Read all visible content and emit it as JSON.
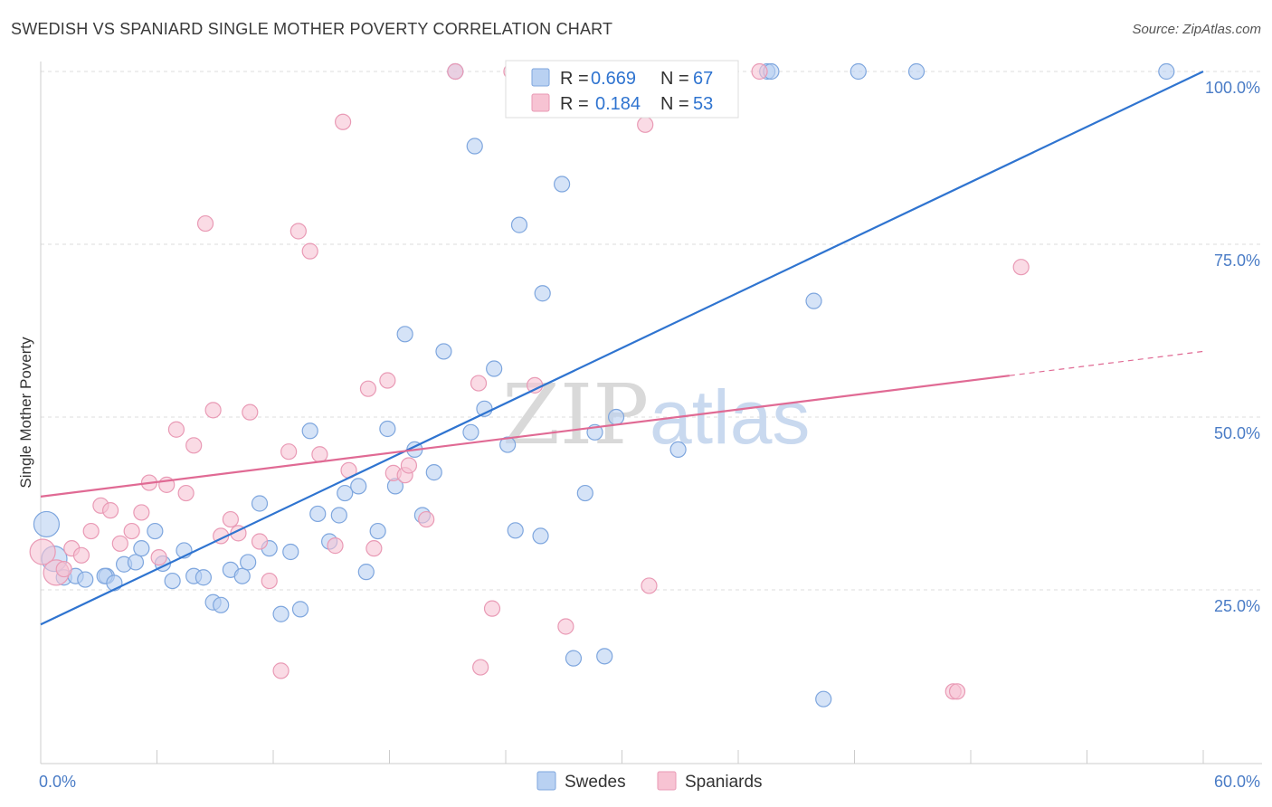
{
  "header": {
    "title": "SWEDISH VS SPANIARD SINGLE MOTHER POVERTY CORRELATION CHART",
    "source": "Source: ZipAtlas.com"
  },
  "watermark": {
    "zip": "ZIP",
    "atlas": "atlas"
  },
  "legend_top": [
    {
      "r_label": "R = ",
      "r_value": "0.669",
      "n_label": "N = ",
      "n_value": "67"
    },
    {
      "r_label": "R = ",
      "r_value": "0.184",
      "n_label": "N = ",
      "n_value": "53"
    }
  ],
  "legend_bottom": [
    "Swedes",
    "Spaniards"
  ],
  "colors": {
    "swedes_fill": "#b9d1f2",
    "swedes_stroke": "#7ea6de",
    "swedes_line": "#2f74d0",
    "spaniards_fill": "#f7c3d3",
    "spaniards_stroke": "#e99ab5",
    "spaniards_line": "#e06a94",
    "tick_text": "#4a7cc6",
    "grid": "#dddddd"
  },
  "chart_data": {
    "type": "scatter",
    "title": "SWEDISH VS SPANIARD SINGLE MOTHER POVERTY CORRELATION CHART",
    "xlabel": "",
    "ylabel": "Single Mother Poverty",
    "xlim": [
      0,
      60
    ],
    "ylim": [
      0,
      102
    ],
    "x_tick_labels": [
      "0.0%",
      "60.0%"
    ],
    "y_ticks": [
      25,
      50,
      75,
      100
    ],
    "y_tick_labels": [
      "25.0%",
      "50.0%",
      "75.0%",
      "100.0%"
    ],
    "grid": true,
    "legend_placement": "top-center",
    "series": [
      {
        "name": "Swedes",
        "r": 0.669,
        "n": 67,
        "trend": {
          "x": [
            0,
            60
          ],
          "y": [
            20,
            100
          ]
        },
        "points": [
          {
            "x": 0.3,
            "y": 34.5,
            "big": true
          },
          {
            "x": 0.7,
            "y": 29.5,
            "big": true
          },
          {
            "x": 1.2,
            "y": 26.8
          },
          {
            "x": 1.8,
            "y": 27
          },
          {
            "x": 2.3,
            "y": 26.5
          },
          {
            "x": 3.4,
            "y": 27
          },
          {
            "x": 3.3,
            "y": 27
          },
          {
            "x": 3.8,
            "y": 26
          },
          {
            "x": 4.3,
            "y": 28.7
          },
          {
            "x": 4.9,
            "y": 29
          },
          {
            "x": 5.2,
            "y": 31
          },
          {
            "x": 5.9,
            "y": 33.5
          },
          {
            "x": 6.3,
            "y": 28.8
          },
          {
            "x": 6.8,
            "y": 26.3
          },
          {
            "x": 7.4,
            "y": 30.7
          },
          {
            "x": 7.9,
            "y": 27
          },
          {
            "x": 8.4,
            "y": 26.8
          },
          {
            "x": 8.9,
            "y": 23.2
          },
          {
            "x": 9.3,
            "y": 22.8
          },
          {
            "x": 9.8,
            "y": 27.9
          },
          {
            "x": 10.4,
            "y": 27
          },
          {
            "x": 10.7,
            "y": 29
          },
          {
            "x": 11.3,
            "y": 37.5
          },
          {
            "x": 11.8,
            "y": 31
          },
          {
            "x": 12.4,
            "y": 21.5
          },
          {
            "x": 12.9,
            "y": 30.5
          },
          {
            "x": 13.4,
            "y": 22.2
          },
          {
            "x": 13.9,
            "y": 48
          },
          {
            "x": 14.3,
            "y": 36
          },
          {
            "x": 14.9,
            "y": 32
          },
          {
            "x": 15.4,
            "y": 35.8
          },
          {
            "x": 15.7,
            "y": 39
          },
          {
            "x": 16.4,
            "y": 40
          },
          {
            "x": 16.8,
            "y": 27.6
          },
          {
            "x": 17.4,
            "y": 33.5
          },
          {
            "x": 17.9,
            "y": 48.3
          },
          {
            "x": 18.3,
            "y": 40
          },
          {
            "x": 18.8,
            "y": 62
          },
          {
            "x": 19.3,
            "y": 45.3
          },
          {
            "x": 19.7,
            "y": 35.8
          },
          {
            "x": 20.3,
            "y": 42
          },
          {
            "x": 20.8,
            "y": 59.5
          },
          {
            "x": 21.4,
            "y": 100
          },
          {
            "x": 22.4,
            "y": 89.2
          },
          {
            "x": 22.2,
            "y": 47.8
          },
          {
            "x": 22.9,
            "y": 51.2
          },
          {
            "x": 23.4,
            "y": 57
          },
          {
            "x": 24.1,
            "y": 46
          },
          {
            "x": 24.5,
            "y": 33.6
          },
          {
            "x": 24.7,
            "y": 77.8
          },
          {
            "x": 25.8,
            "y": 32.8
          },
          {
            "x": 25.9,
            "y": 67.9
          },
          {
            "x": 26.9,
            "y": 83.7
          },
          {
            "x": 27.5,
            "y": 15.1
          },
          {
            "x": 28.1,
            "y": 39
          },
          {
            "x": 28.6,
            "y": 47.8
          },
          {
            "x": 29.1,
            "y": 15.4
          },
          {
            "x": 29.7,
            "y": 50
          },
          {
            "x": 31.1,
            "y": 100
          },
          {
            "x": 32.9,
            "y": 45.3
          },
          {
            "x": 37.5,
            "y": 100
          },
          {
            "x": 37.7,
            "y": 100
          },
          {
            "x": 39.9,
            "y": 66.8
          },
          {
            "x": 40.4,
            "y": 9.2
          },
          {
            "x": 42.2,
            "y": 100
          },
          {
            "x": 45.2,
            "y": 100
          },
          {
            "x": 58.1,
            "y": 100
          }
        ]
      },
      {
        "name": "Spaniards",
        "r": 0.184,
        "n": 53,
        "trend": {
          "x": [
            0,
            50
          ],
          "y": [
            38.5,
            56
          ]
        },
        "trend_dashed": {
          "x": [
            50,
            60
          ],
          "y": [
            56,
            59.5
          ]
        },
        "points": [
          {
            "x": 0.1,
            "y": 30.5,
            "big": true
          },
          {
            "x": 0.8,
            "y": 27.5,
            "big": true
          },
          {
            "x": 1.2,
            "y": 28
          },
          {
            "x": 1.6,
            "y": 31
          },
          {
            "x": 2.1,
            "y": 30
          },
          {
            "x": 2.6,
            "y": 33.5
          },
          {
            "x": 3.1,
            "y": 37.2
          },
          {
            "x": 3.6,
            "y": 36.5
          },
          {
            "x": 4.1,
            "y": 31.7
          },
          {
            "x": 4.7,
            "y": 33.5
          },
          {
            "x": 5.2,
            "y": 36.2
          },
          {
            "x": 5.6,
            "y": 40.5
          },
          {
            "x": 6.1,
            "y": 29.7
          },
          {
            "x": 6.5,
            "y": 40.2
          },
          {
            "x": 7.0,
            "y": 48.2
          },
          {
            "x": 7.5,
            "y": 39
          },
          {
            "x": 7.9,
            "y": 45.9
          },
          {
            "x": 8.5,
            "y": 78
          },
          {
            "x": 8.9,
            "y": 51
          },
          {
            "x": 9.3,
            "y": 32.8
          },
          {
            "x": 9.8,
            "y": 35.2
          },
          {
            "x": 10.2,
            "y": 33.2
          },
          {
            "x": 10.8,
            "y": 50.7
          },
          {
            "x": 11.3,
            "y": 32
          },
          {
            "x": 11.8,
            "y": 26.3
          },
          {
            "x": 12.4,
            "y": 13.3
          },
          {
            "x": 12.8,
            "y": 45
          },
          {
            "x": 13.3,
            "y": 76.9
          },
          {
            "x": 13.9,
            "y": 74
          },
          {
            "x": 14.4,
            "y": 44.6
          },
          {
            "x": 15.2,
            "y": 31.4
          },
          {
            "x": 15.6,
            "y": 92.7
          },
          {
            "x": 15.9,
            "y": 42.3
          },
          {
            "x": 16.9,
            "y": 54.1
          },
          {
            "x": 17.2,
            "y": 31
          },
          {
            "x": 17.9,
            "y": 55.3
          },
          {
            "x": 18.2,
            "y": 41.9
          },
          {
            "x": 18.8,
            "y": 41.6
          },
          {
            "x": 19.0,
            "y": 43
          },
          {
            "x": 19.9,
            "y": 35.2
          },
          {
            "x": 21.4,
            "y": 100
          },
          {
            "x": 22.6,
            "y": 54.9
          },
          {
            "x": 22.7,
            "y": 13.8
          },
          {
            "x": 23.3,
            "y": 22.3
          },
          {
            "x": 24.3,
            "y": 100
          },
          {
            "x": 25.5,
            "y": 54.6
          },
          {
            "x": 27.1,
            "y": 19.7
          },
          {
            "x": 31.2,
            "y": 92.3
          },
          {
            "x": 31.4,
            "y": 25.6
          },
          {
            "x": 37.1,
            "y": 100
          },
          {
            "x": 47.1,
            "y": 10.3
          },
          {
            "x": 47.3,
            "y": 10.3
          },
          {
            "x": 50.6,
            "y": 71.7
          }
        ]
      }
    ]
  }
}
